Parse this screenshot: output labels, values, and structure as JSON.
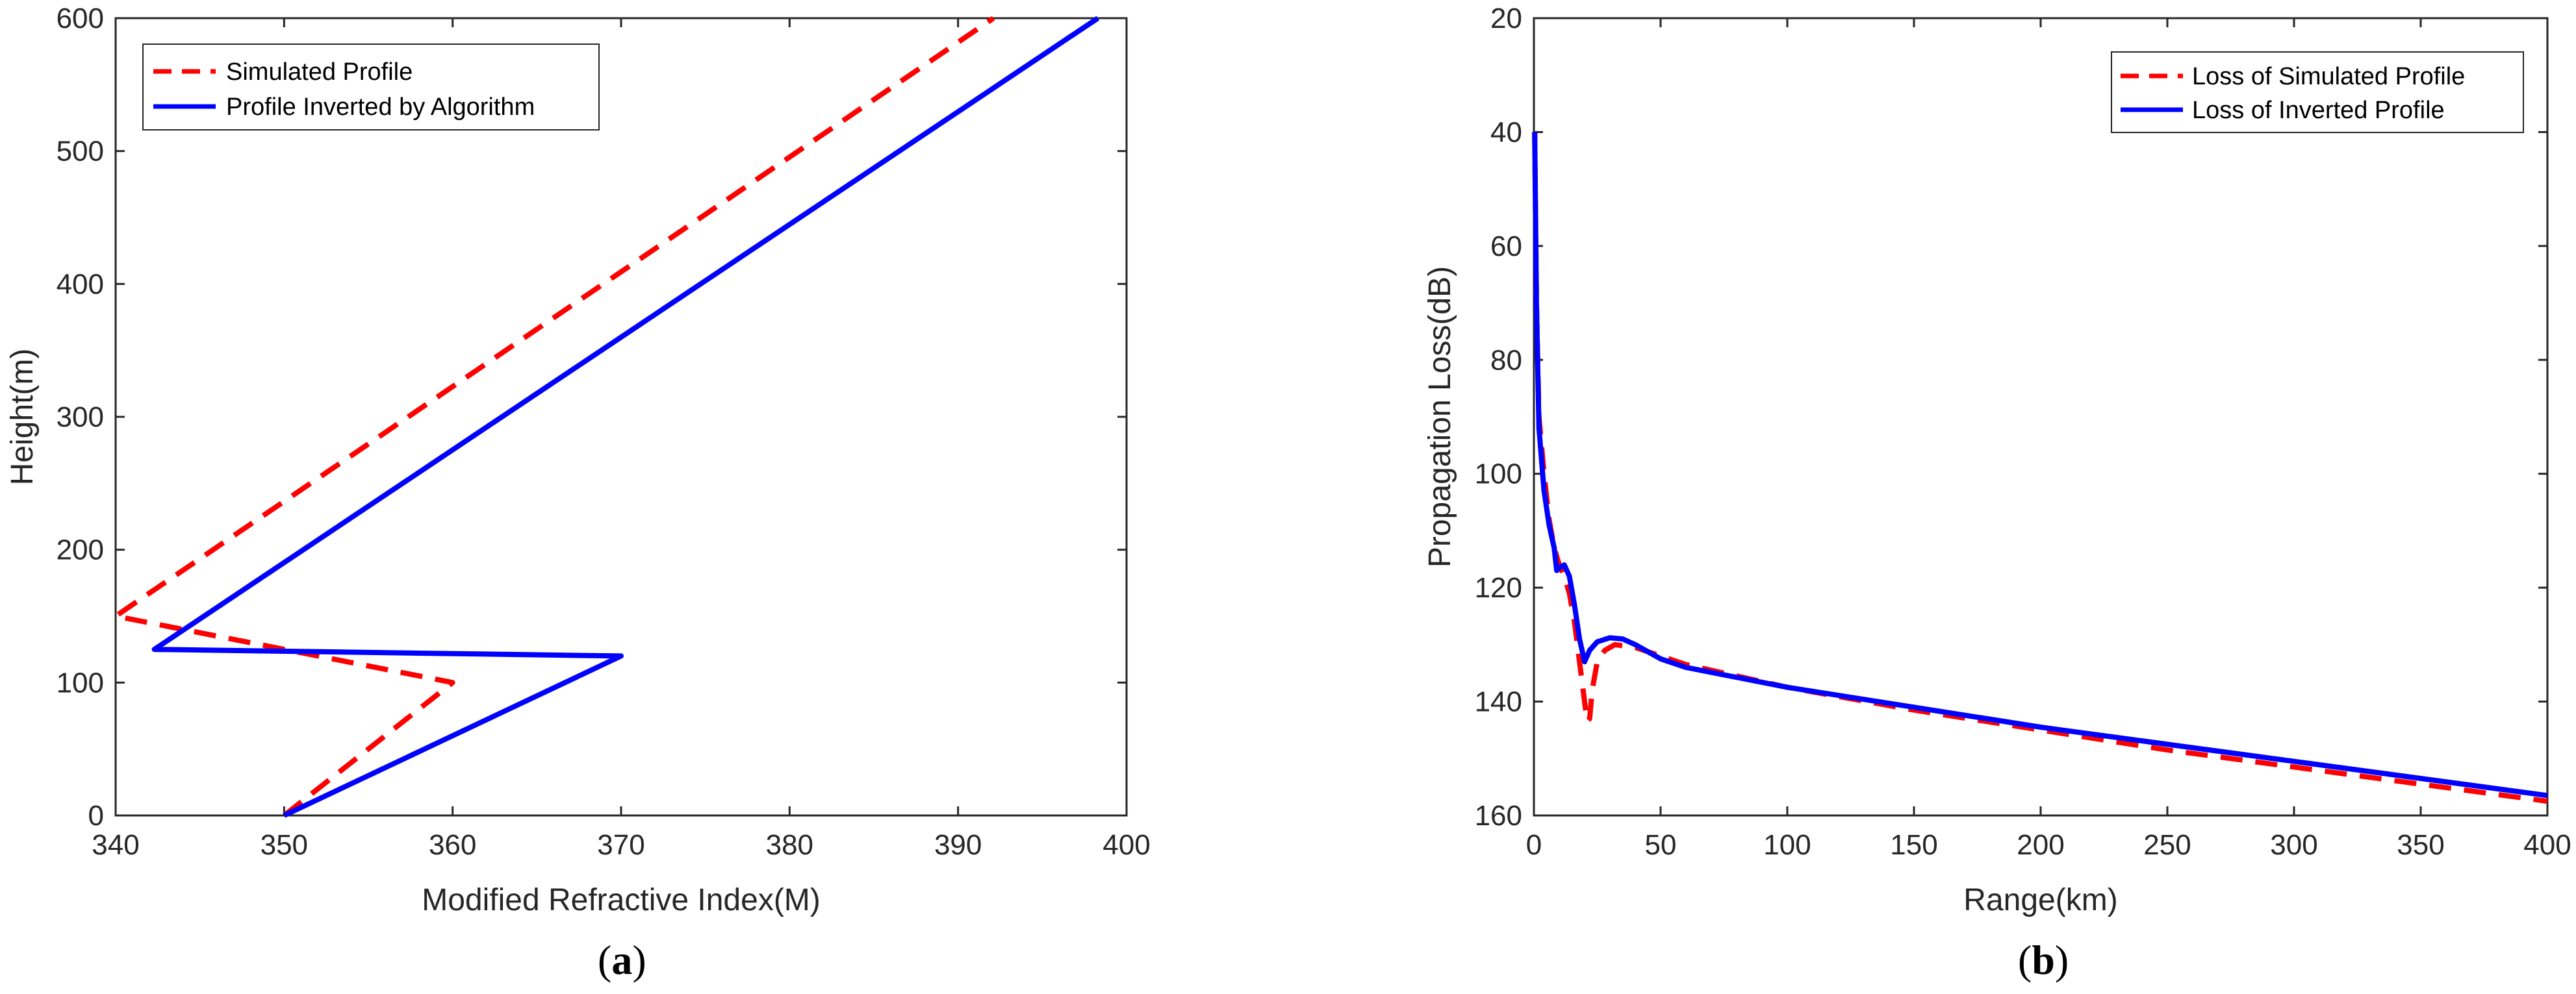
{
  "chart_data": [
    {
      "panel_label": "a",
      "type": "line",
      "xlabel": "Modified Refractive Index(M)",
      "ylabel": "Height(m)",
      "xlim": [
        340,
        400
      ],
      "ylim": [
        0,
        600
      ],
      "xticks": [
        340,
        350,
        360,
        370,
        380,
        390,
        400
      ],
      "yticks": [
        0,
        100,
        200,
        300,
        400,
        500,
        600
      ],
      "legend_position": "top-left",
      "series": [
        {
          "name": "Simulated Profile",
          "color": "#ff0000",
          "style": "dashed",
          "points": [
            [
              350,
              0
            ],
            [
              360,
              100
            ],
            [
              340,
              150
            ],
            [
              392.1,
              600
            ]
          ]
        },
        {
          "name": "Profile Inverted by Algorithm",
          "color": "#0000ff",
          "style": "solid",
          "points": [
            [
              350,
              0
            ],
            [
              370,
              120
            ],
            [
              342.3,
              125
            ],
            [
              398.3,
              600
            ]
          ]
        }
      ]
    },
    {
      "panel_label": "b",
      "type": "line",
      "xlabel": "Range(km)",
      "ylabel": "Propagation Loss(dB)",
      "xlim": [
        0,
        400
      ],
      "ylim": [
        160,
        20
      ],
      "y_reversed": true,
      "xticks": [
        0,
        50,
        100,
        150,
        200,
        250,
        300,
        350,
        400
      ],
      "yticks": [
        20,
        40,
        60,
        80,
        100,
        120,
        140,
        160
      ],
      "legend_position": "top-right",
      "series": [
        {
          "name": "Loss of Simulated Profile",
          "color": "#ff0000",
          "style": "dashed",
          "points": [
            [
              0.3,
              40
            ],
            [
              1,
              70
            ],
            [
              2,
              90
            ],
            [
              4,
              100
            ],
            [
              6,
              108
            ],
            [
              8,
              113
            ],
            [
              10,
              116
            ],
            [
              12,
              118
            ],
            [
              14,
              121
            ],
            [
              16,
              126
            ],
            [
              18,
              133
            ],
            [
              20,
              140
            ],
            [
              21,
              143.5
            ],
            [
              22,
              143
            ],
            [
              23,
              138
            ],
            [
              25,
              133
            ],
            [
              28,
              131
            ],
            [
              32,
              130
            ],
            [
              40,
              130.5
            ],
            [
              50,
              132
            ],
            [
              60,
              133.5
            ],
            [
              100,
              137.5
            ],
            [
              150,
              141.5
            ],
            [
              200,
              145
            ],
            [
              250,
              148.5
            ],
            [
              300,
              151.5
            ],
            [
              350,
              154.5
            ],
            [
              400,
              157.5
            ]
          ]
        },
        {
          "name": "Loss of Inverted Profile",
          "color": "#0000ff",
          "style": "solid",
          "points": [
            [
              0.3,
              40
            ],
            [
              1,
              70
            ],
            [
              2,
              92
            ],
            [
              4,
              103
            ],
            [
              6,
              109
            ],
            [
              8,
              113
            ],
            [
              9,
              117
            ],
            [
              10,
              116.5
            ],
            [
              12,
              116
            ],
            [
              14,
              118
            ],
            [
              16,
              123
            ],
            [
              18,
              129
            ],
            [
              20,
              133
            ],
            [
              22,
              131
            ],
            [
              25,
              129.5
            ],
            [
              30,
              128.8
            ],
            [
              35,
              129
            ],
            [
              40,
              130
            ],
            [
              50,
              132.5
            ],
            [
              60,
              134
            ],
            [
              100,
              137.5
            ],
            [
              150,
              141
            ],
            [
              200,
              144.5
            ],
            [
              250,
              147.5
            ],
            [
              300,
              150.5
            ],
            [
              350,
              153.5
            ],
            [
              400,
              156.5
            ]
          ]
        }
      ]
    }
  ]
}
